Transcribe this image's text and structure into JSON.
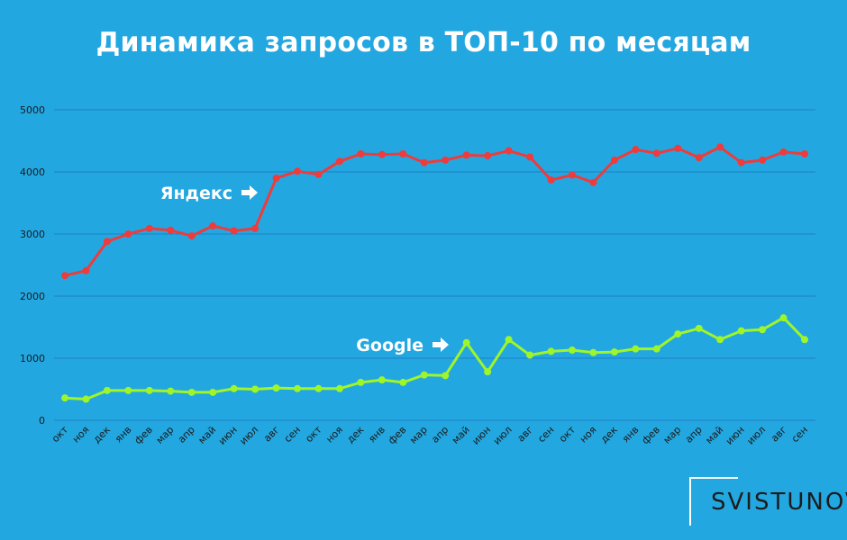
{
  "chart_data": {
    "type": "line",
    "title": "Динамика запросов в ТОП-10 по месяцам",
    "categories": [
      "окт",
      "ноя",
      "дек",
      "янв",
      "фев",
      "мар",
      "апр",
      "май",
      "июн",
      "июл",
      "авг",
      "сен",
      "окт",
      "ноя",
      "дек",
      "янв",
      "фев",
      "мар",
      "апр",
      "май",
      "июн",
      "июл",
      "авг",
      "сен",
      "окт",
      "ноя",
      "дек",
      "янв",
      "фев",
      "мар",
      "апр",
      "май",
      "июн",
      "июл",
      "авг",
      "сен"
    ],
    "ylim": [
      0,
      5000
    ],
    "yticks": [
      0,
      1000,
      2000,
      3000,
      4000,
      5000
    ],
    "grid": true,
    "series": [
      {
        "name": "Яндекс",
        "color": "#ef3b3b",
        "values": [
          2330,
          2410,
          2880,
          3000,
          3090,
          3060,
          2970,
          3130,
          3050,
          3090,
          3900,
          4010,
          3960,
          4170,
          4290,
          4280,
          4290,
          4150,
          4190,
          4270,
          4260,
          4340,
          4240,
          3870,
          3950,
          3830,
          4190,
          4360,
          4300,
          4380,
          4230,
          4400,
          4150,
          4190,
          4320,
          4290
        ]
      },
      {
        "name": "Google",
        "color": "#9ef52a",
        "values": [
          360,
          340,
          480,
          480,
          480,
          470,
          450,
          450,
          510,
          500,
          520,
          510,
          510,
          510,
          610,
          650,
          610,
          730,
          720,
          1250,
          780,
          1300,
          1050,
          1110,
          1130,
          1090,
          1100,
          1150,
          1150,
          1390,
          1480,
          1300,
          1440,
          1460,
          1650,
          1300
        ]
      }
    ]
  },
  "logo": {
    "text": "SVISTUNOV"
  },
  "colors": {
    "background": "#23a7e0",
    "grid": "#1f7fc6",
    "axis_text": "#1b1b1b"
  }
}
